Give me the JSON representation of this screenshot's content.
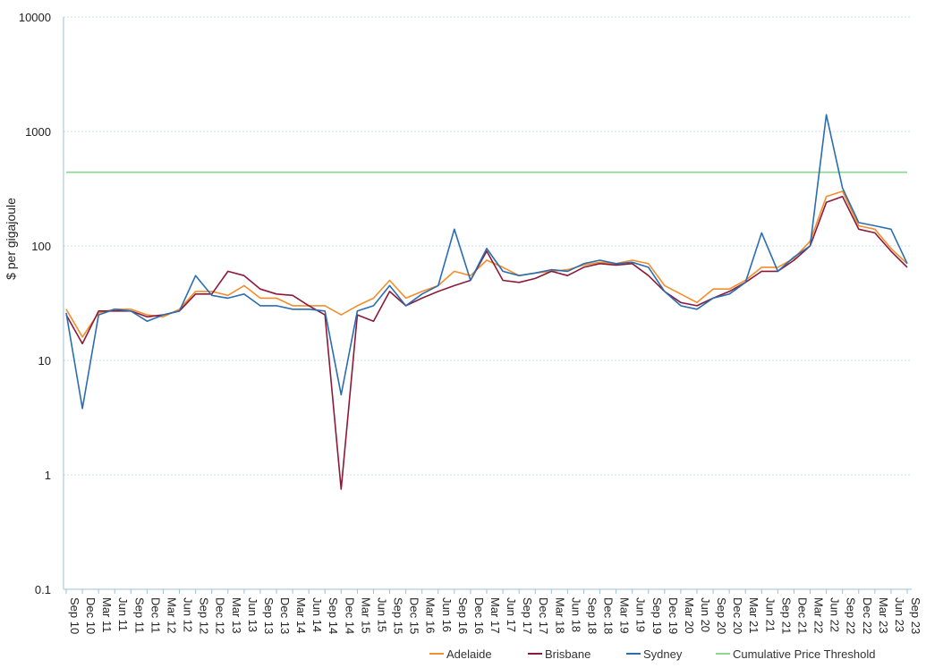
{
  "chart_data": {
    "type": "line",
    "title": "",
    "xlabel": "",
    "ylabel": "$ per gigajoule",
    "yscale": "log",
    "ylim": [
      0.1,
      10000
    ],
    "yticks": [
      0.1,
      1,
      10,
      100,
      1000,
      10000
    ],
    "ytick_labels": [
      "0.1",
      "1",
      "10",
      "100",
      "1000",
      "10000"
    ],
    "categories": [
      "Sep 10",
      "Dec 10",
      "Mar 11",
      "Jun 11",
      "Sep 11",
      "Dec 11",
      "Mar 12",
      "Jun 12",
      "Sep 12",
      "Dec 12",
      "Mar 13",
      "Jun 13",
      "Sep 13",
      "Dec 13",
      "Mar 14",
      "Jun 14",
      "Sep 14",
      "Dec 14",
      "Mar 15",
      "Jun 15",
      "Sep 15",
      "Dec 15",
      "Mar 16",
      "Jun 16",
      "Sep 16",
      "Dec 16",
      "Mar 17",
      "Jun 17",
      "Sep 17",
      "Dec 17",
      "Mar 18",
      "Jun 18",
      "Sep 18",
      "Dec 18",
      "Mar 19",
      "Jun 19",
      "Sep 19",
      "Dec 19",
      "Mar 20",
      "Jun 20",
      "Sep 20",
      "Dec 20",
      "Mar 21",
      "Jun 21",
      "Sep 21",
      "Dec 21",
      "Mar 22",
      "Jun 22",
      "Sep 22",
      "Dec 22",
      "Mar 23",
      "Jun 23",
      "Sep 23"
    ],
    "series": [
      {
        "name": "Adelaide",
        "color": "#f28e2b",
        "values": [
          28,
          16,
          26,
          28,
          28,
          25,
          24,
          28,
          40,
          40,
          37,
          45,
          35,
          35,
          30,
          30,
          30,
          25,
          30,
          35,
          50,
          35,
          40,
          45,
          60,
          55,
          75,
          65,
          55,
          58,
          60,
          62,
          68,
          72,
          70,
          75,
          70,
          45,
          38,
          32,
          42,
          42,
          50,
          65,
          65,
          78,
          110,
          270,
          300,
          150,
          140,
          95,
          70
        ]
      },
      {
        "name": "Brisbane",
        "color": "#8b1a3a",
        "values": [
          25,
          14,
          27,
          27,
          27,
          24,
          25,
          27,
          38,
          38,
          60,
          55,
          42,
          38,
          37,
          30,
          25,
          0.75,
          25,
          22,
          40,
          30,
          35,
          40,
          45,
          50,
          90,
          50,
          48,
          52,
          60,
          55,
          65,
          70,
          68,
          70,
          55,
          40,
          32,
          30,
          35,
          40,
          48,
          60,
          60,
          75,
          100,
          240,
          270,
          140,
          130,
          90,
          65
        ]
      },
      {
        "name": "Sydney",
        "color": "#2a6db0",
        "values": [
          26,
          3.8,
          25,
          28,
          27,
          22,
          25,
          27,
          55,
          37,
          35,
          38,
          30,
          30,
          28,
          28,
          27,
          5,
          27,
          30,
          45,
          30,
          38,
          45,
          140,
          50,
          95,
          60,
          55,
          58,
          62,
          60,
          70,
          75,
          70,
          72,
          65,
          40,
          30,
          28,
          35,
          38,
          48,
          130,
          60,
          80,
          100,
          1400,
          320,
          160,
          150,
          140,
          70
        ]
      },
      {
        "name": "Cumulative Price Threshold",
        "color": "#8fd694",
        "values": [
          440,
          440,
          440,
          440,
          440,
          440,
          440,
          440,
          440,
          440,
          440,
          440,
          440,
          440,
          440,
          440,
          440,
          440,
          440,
          440,
          440,
          440,
          440,
          440,
          440,
          440,
          440,
          440,
          440,
          440,
          440,
          440,
          440,
          440,
          440,
          440,
          440,
          440,
          440,
          440,
          440,
          440,
          440,
          440,
          440,
          440,
          440,
          440,
          440,
          440,
          440,
          440,
          440
        ]
      }
    ],
    "legend": [
      "Adelaide",
      "Brisbane",
      "Sydney",
      "Cumulative Price Threshold"
    ],
    "legend_position": "bottom-right",
    "grid": true
  }
}
